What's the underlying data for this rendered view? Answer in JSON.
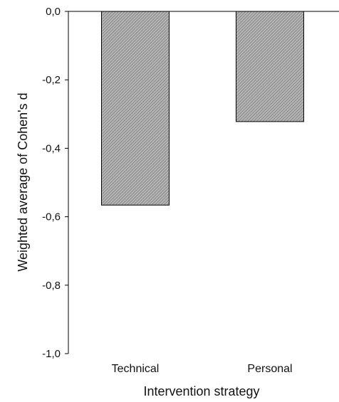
{
  "chart_data": {
    "type": "bar",
    "categories": [
      "Technical",
      "Personal"
    ],
    "values": [
      -0.566,
      -0.322
    ],
    "title": "",
    "xlabel": "Intervention strategy",
    "ylabel": "Weighted average of Cohen's d",
    "ylim": [
      -1.0,
      0.0
    ],
    "yticks": [
      "0,0",
      "-0,2",
      "-0,4",
      "-0,6",
      "-0,8",
      "-1,0"
    ],
    "ytick_values": [
      0.0,
      -0.2,
      -0.4,
      -0.6,
      -0.8,
      -1.0
    ],
    "grid": false,
    "legend": "none",
    "bar_fill": "hatched-gray",
    "colors": {
      "bar": "#a8a8a8",
      "hatch": "#6f6f6f",
      "axis": "#000000",
      "text": "#111111"
    }
  }
}
